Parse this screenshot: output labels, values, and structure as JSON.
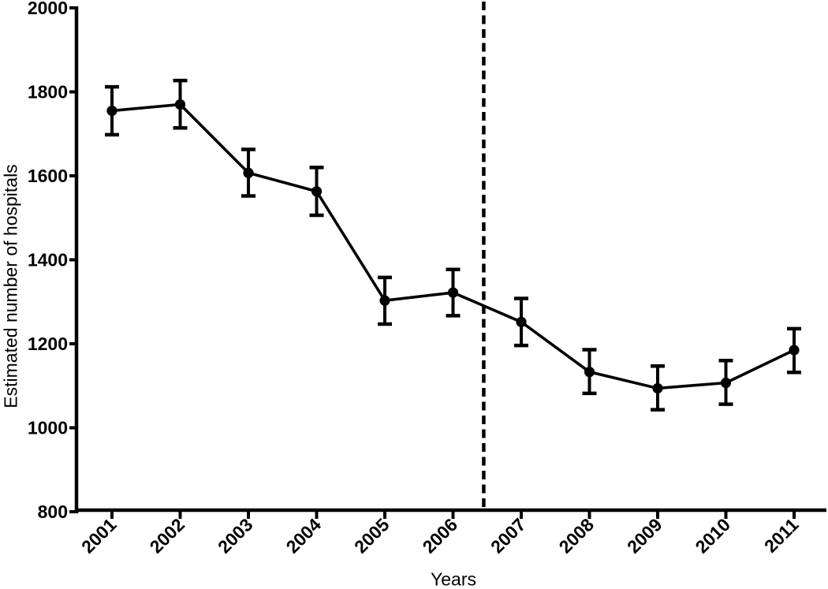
{
  "figure": {
    "background_color": "#ffffff",
    "foreground_color": "#000000"
  },
  "chart_data": {
    "type": "line",
    "title": "",
    "xlabel": "Years",
    "ylabel": "Estimated number of hospitals",
    "categories": [
      2001,
      2002,
      2003,
      2004,
      2005,
      2006,
      2007,
      2008,
      2009,
      2010,
      2011
    ],
    "series": [
      {
        "name": "Estimated number of hospitals",
        "values": [
          1755,
          1770,
          1607,
          1563,
          1303,
          1322,
          1252,
          1133,
          1094,
          1107,
          1185
        ],
        "error_upper": [
          1812,
          1827,
          1663,
          1620,
          1358,
          1377,
          1308,
          1186,
          1147,
          1160,
          1236
        ],
        "error_lower": [
          1698,
          1714,
          1552,
          1506,
          1247,
          1267,
          1196,
          1082,
          1043,
          1056,
          1132
        ]
      }
    ],
    "ylim": [
      800,
      2000
    ],
    "yticks": [
      800,
      1000,
      1200,
      1400,
      1600,
      1800,
      2000
    ],
    "xtick_rotation_degrees": 45,
    "grid": false,
    "legend": false,
    "marker": "filled-circle",
    "line_color": "#000000",
    "reference_line": {
      "orientation": "vertical",
      "style": "dashed",
      "x": 2006.45
    }
  }
}
